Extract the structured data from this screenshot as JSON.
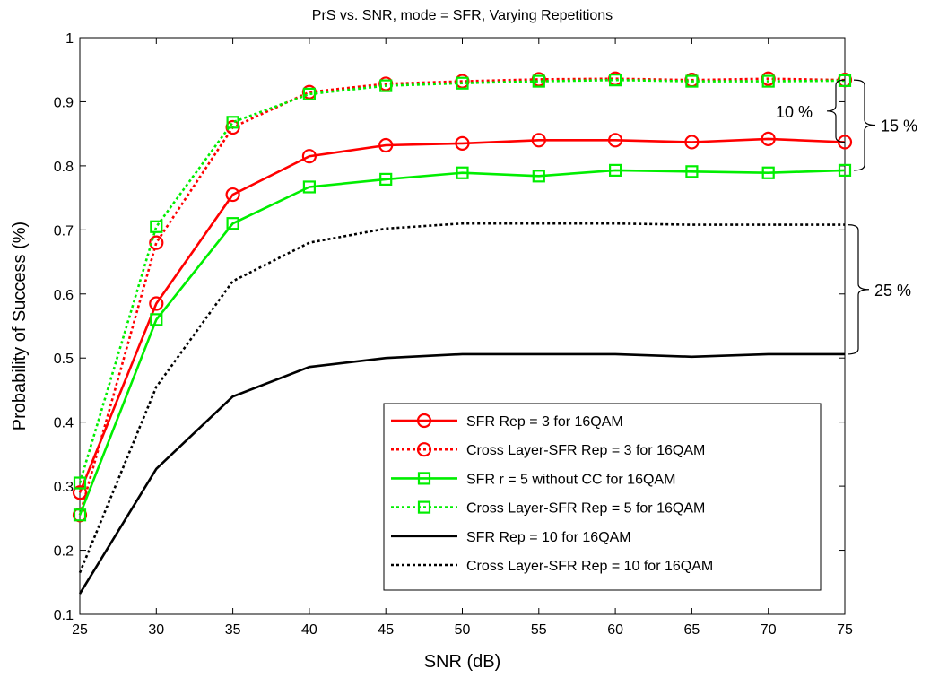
{
  "chart_data": {
    "type": "line",
    "title": "PrS vs. SNR, mode = SFR, Varying Repetitions",
    "xlabel": "SNR (dB)",
    "ylabel": "Probability of Success (%)",
    "xlim": [
      25,
      75
    ],
    "ylim": [
      0.1,
      1
    ],
    "x": [
      25,
      30,
      35,
      40,
      45,
      50,
      55,
      60,
      65,
      70,
      75
    ],
    "x_ticks": [
      "25",
      "30",
      "35",
      "40",
      "45",
      "50",
      "55",
      "60",
      "65",
      "70",
      "75"
    ],
    "y_ticks": [
      "0.1",
      "0.2",
      "0.3",
      "0.4",
      "0.5",
      "0.6",
      "0.7",
      "0.8",
      "0.9",
      "1"
    ],
    "grid": false,
    "legend_position": "bottom-right",
    "series": [
      {
        "name": "SFR Rep = 3 for 16QAM",
        "color": "#ff0000",
        "dash": "solid",
        "marker": "circle",
        "values": [
          0.29,
          0.585,
          0.755,
          0.815,
          0.832,
          0.835,
          0.84,
          0.84,
          0.837,
          0.842,
          0.837
        ]
      },
      {
        "name": "Cross Layer-SFR Rep = 3 for 16QAM",
        "color": "#ff0000",
        "dash": "dotted",
        "marker": "circle",
        "values": [
          0.255,
          0.68,
          0.86,
          0.915,
          0.928,
          0.932,
          0.935,
          0.936,
          0.934,
          0.936,
          0.934
        ]
      },
      {
        "name": "SFR r = 5 without CC for 16QAM",
        "color": "#00ee00",
        "dash": "solid",
        "marker": "square",
        "values": [
          0.255,
          0.56,
          0.71,
          0.767,
          0.779,
          0.789,
          0.784,
          0.793,
          0.791,
          0.789,
          0.793
        ]
      },
      {
        "name": "Cross Layer-SFR Rep = 5 for 16QAM",
        "color": "#00ee00",
        "dash": "dotted",
        "marker": "square",
        "values": [
          0.305,
          0.705,
          0.868,
          0.912,
          0.925,
          0.929,
          0.932,
          0.934,
          0.932,
          0.932,
          0.933
        ]
      },
      {
        "name": "SFR Rep = 10 for 16QAM",
        "color": "#000000",
        "dash": "solid",
        "marker": "none",
        "values": [
          0.132,
          0.327,
          0.44,
          0.486,
          0.5,
          0.506,
          0.506,
          0.506,
          0.502,
          0.506,
          0.506
        ]
      },
      {
        "name": "Cross Layer-SFR Rep = 10 for 16QAM",
        "color": "#000000",
        "dash": "dotted",
        "marker": "none",
        "values": [
          0.165,
          0.455,
          0.62,
          0.68,
          0.702,
          0.71,
          0.71,
          0.71,
          0.708,
          0.708,
          0.708
        ]
      }
    ],
    "annotations": [
      {
        "text": "10 %",
        "from": 0.934,
        "to": 0.837,
        "side": "left"
      },
      {
        "text": "15 %",
        "from": 0.934,
        "to": 0.793,
        "side": "right"
      },
      {
        "text": "25 %",
        "from": 0.708,
        "to": 0.506,
        "side": "right"
      }
    ]
  }
}
